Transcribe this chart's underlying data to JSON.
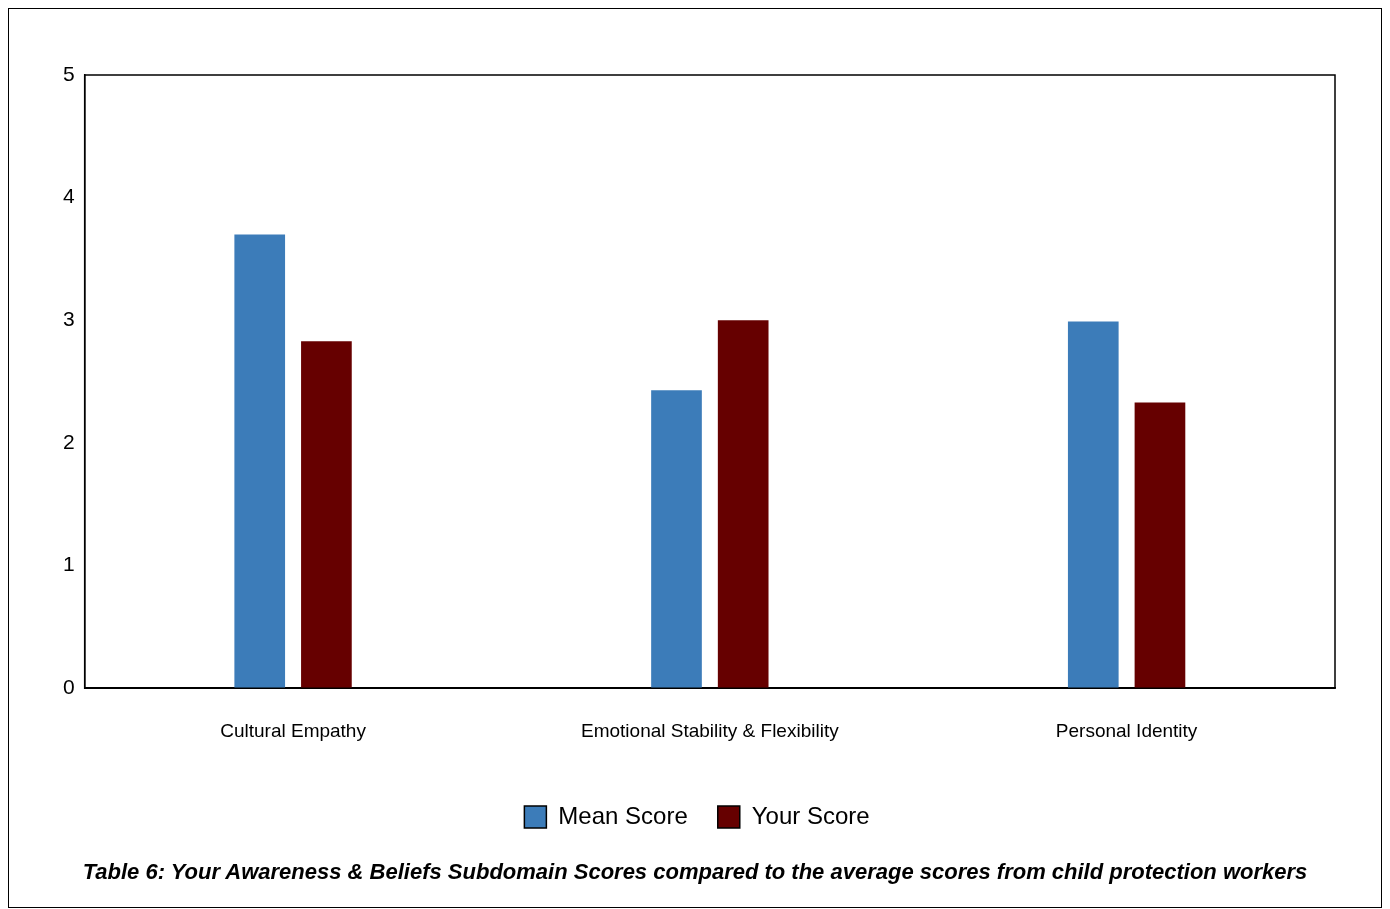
{
  "chart_data": {
    "type": "bar",
    "categories": [
      "Cultural Empathy",
      "Emotional Stability & Flexibility",
      "Personal Identity"
    ],
    "series": [
      {
        "name": "Mean Score",
        "color": "#3c7cb9",
        "values": [
          3.7,
          2.43,
          2.99
        ]
      },
      {
        "name": "Your Score",
        "color": "#660000",
        "values": [
          2.83,
          3.0,
          2.33
        ]
      }
    ],
    "ylim": [
      0,
      5
    ],
    "yticks": [
      0,
      1,
      2,
      3,
      4,
      5
    ],
    "grid": false,
    "legend": "bottom",
    "annotations": [
      "Table 6: Your Awareness & Beliefs Subdomain Scores compared to the average scores from child protection workers"
    ]
  }
}
